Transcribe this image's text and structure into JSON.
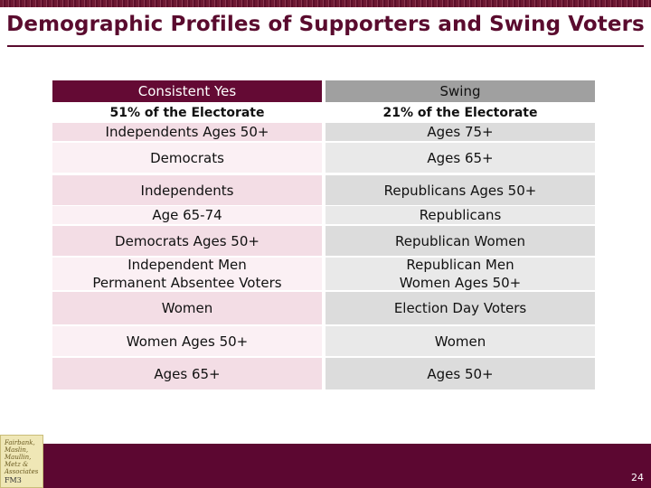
{
  "title": "Demographic Profiles of Supporters and Swing Voters",
  "columns": [
    {
      "header": "Consistent Yes",
      "subheader": "51% of the Electorate",
      "rows": [
        [
          "Independents Ages 50+"
        ],
        [
          "Democrats"
        ],
        [
          "Independents"
        ],
        [
          "Age 65-74"
        ],
        [
          "Democrats Ages 50+"
        ],
        [
          "Independent Men",
          "Permanent Absentee Voters"
        ],
        [
          "Women"
        ],
        [
          "Women Ages 50+"
        ],
        [
          "Ages 65+"
        ]
      ]
    },
    {
      "header": "Swing",
      "subheader": "21% of the Electorate",
      "rows": [
        [
          "Ages 75+"
        ],
        [
          "Ages 65+"
        ],
        [
          "Republicans Ages 50+"
        ],
        [
          "Republicans"
        ],
        [
          "Republican Women"
        ],
        [
          "Republican Men",
          "Women Ages 50+"
        ],
        [
          "Election Day Voters"
        ],
        [
          "Women"
        ],
        [
          "Ages 50+"
        ]
      ]
    }
  ],
  "logo": {
    "lines": [
      "Fairbank,",
      "Maslin,",
      "Maullin,",
      "Metz &",
      "Associates"
    ],
    "mark": "FM3"
  },
  "page_number": "24",
  "colors": {
    "accent": "#5a0b2e",
    "yes_header": "#640a34",
    "swing_header": "#a0a0a0"
  }
}
